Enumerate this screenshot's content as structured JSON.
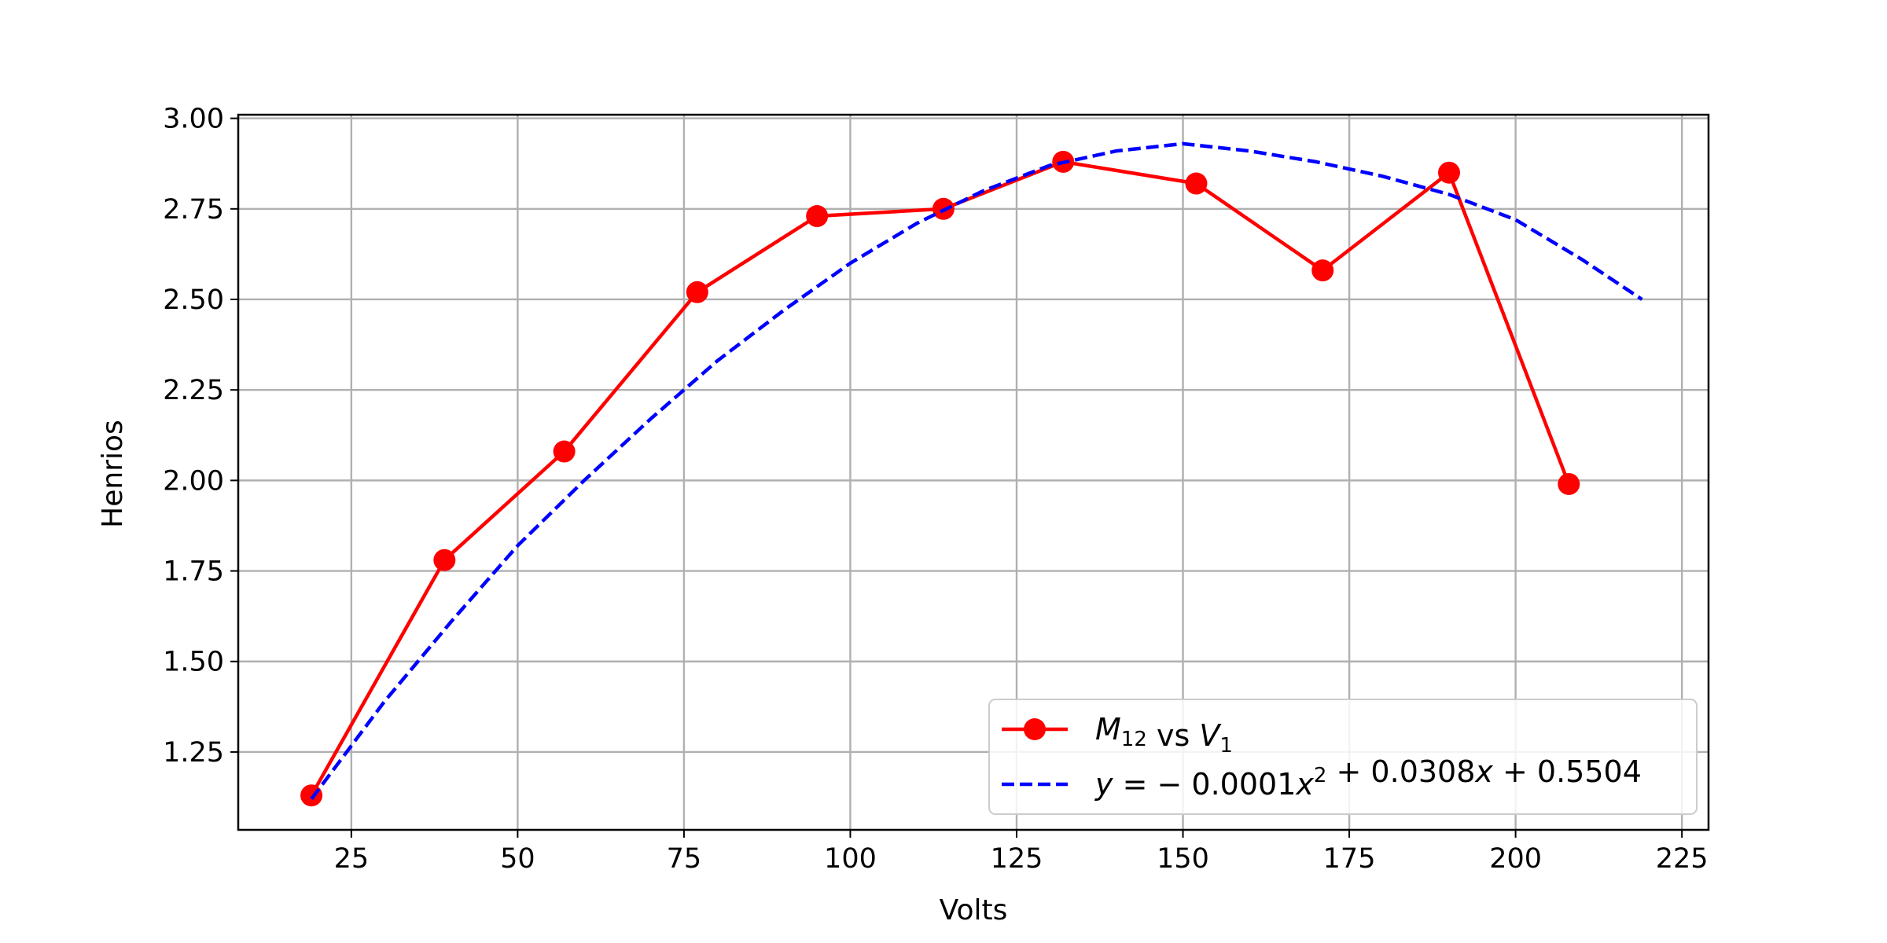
{
  "chart_data": {
    "type": "line",
    "title": "",
    "xlabel": "Volts",
    "ylabel": "Henrios",
    "xlim": [
      8,
      229
    ],
    "ylim": [
      1.035,
      3.01
    ],
    "xticks": [
      25,
      50,
      75,
      100,
      125,
      150,
      175,
      200,
      225
    ],
    "xtick_labels": [
      "25",
      "50",
      "75",
      "100",
      "125",
      "150",
      "175",
      "200",
      "225"
    ],
    "yticks": [
      1.25,
      1.5,
      1.75,
      2.0,
      2.25,
      2.5,
      2.75,
      3.0
    ],
    "ytick_labels": [
      "1.25",
      "1.50",
      "1.75",
      "2.00",
      "2.25",
      "2.50",
      "2.75",
      "3.00"
    ],
    "grid": true,
    "legend_position": "lower-right",
    "series": [
      {
        "name": "M12 vs V1",
        "legend_parts": [
          {
            "text": "M",
            "style": "italic"
          },
          {
            "text": "12",
            "style": "sub"
          },
          {
            "text": " vs ",
            "style": "normal"
          },
          {
            "text": "V",
            "style": "italic"
          },
          {
            "text": "1",
            "style": "sub"
          }
        ],
        "kind": "line-marker",
        "color": "#ff0000",
        "x": [
          19,
          39,
          57,
          77,
          95,
          114,
          132,
          152,
          171,
          190,
          208
        ],
        "y": [
          1.13,
          1.78,
          2.08,
          2.52,
          2.73,
          2.75,
          2.88,
          2.82,
          2.58,
          2.85,
          1.99
        ]
      },
      {
        "name": "y = −0.0001x² + 0.0308x + 0.5504",
        "legend_parts": [
          {
            "text": "y",
            "style": "italic"
          },
          {
            "text": " = − 0.0001",
            "style": "normal"
          },
          {
            "text": "x",
            "style": "italic"
          },
          {
            "text": "2",
            "style": "sup"
          },
          {
            "text": " + 0.0308",
            "style": "normal"
          },
          {
            "text": "x",
            "style": "italic"
          },
          {
            "text": " + 0.5504",
            "style": "normal"
          }
        ],
        "kind": "dashed-fit",
        "color": "#0000ff",
        "x": [
          19,
          30,
          40,
          50,
          60,
          70,
          80,
          90,
          100,
          110,
          120,
          130,
          140,
          150,
          160,
          170,
          180,
          190,
          200,
          210,
          219
        ],
        "y": [
          1.12,
          1.39,
          1.61,
          1.82,
          2.0,
          2.17,
          2.33,
          2.47,
          2.6,
          2.71,
          2.8,
          2.87,
          2.91,
          2.93,
          2.91,
          2.88,
          2.84,
          2.79,
          2.72,
          2.61,
          2.5
        ]
      }
    ]
  }
}
